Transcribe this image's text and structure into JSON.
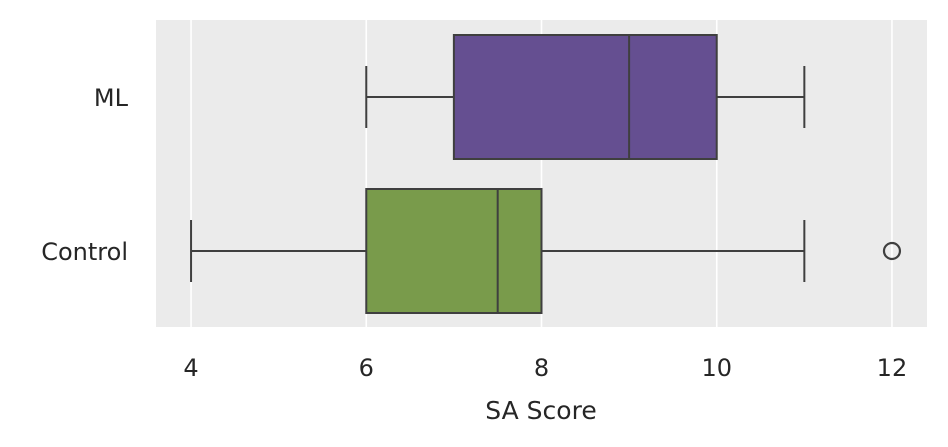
{
  "chart_data": {
    "type": "boxplot",
    "orientation": "horizontal",
    "xlabel": "SA Score",
    "ylabel": "",
    "xlim": [
      3.6,
      12.4
    ],
    "xticks": [
      4,
      6,
      8,
      10,
      12
    ],
    "grid": true,
    "background": "#EBEBEB",
    "series": [
      {
        "category": "ML",
        "color": "#654F91",
        "whisker_low": 6,
        "q1": 7,
        "median": 9,
        "q3": 10,
        "whisker_high": 11,
        "outliers": []
      },
      {
        "category": "Control",
        "color": "#799B4B",
        "whisker_low": 4,
        "q1": 6,
        "median": 7.5,
        "q3": 8,
        "whisker_high": 11,
        "outliers": [
          12
        ]
      }
    ]
  }
}
